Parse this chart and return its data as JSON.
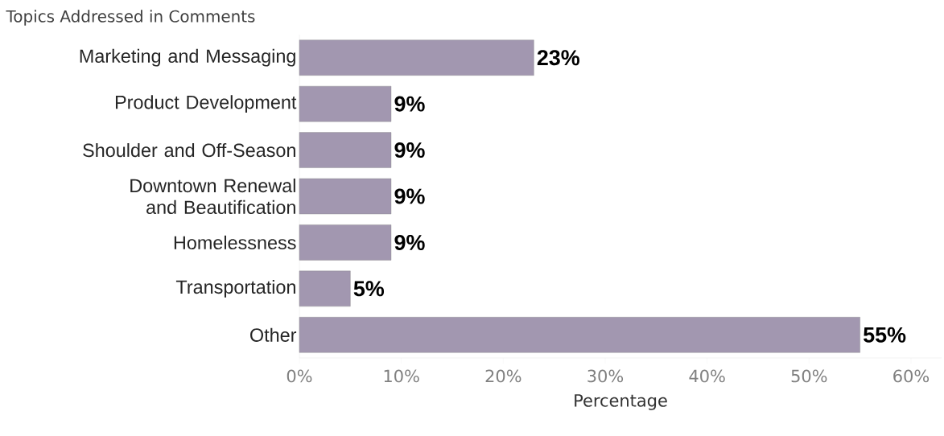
{
  "chart_data": {
    "type": "bar",
    "orientation": "horizontal",
    "title": "Topics Addressed in Comments",
    "xlabel": "Percentage",
    "categories": [
      "Marketing and Messaging",
      "Product Development",
      "Shoulder and Off-Season",
      "Downtown Renewal and Beautification",
      "Homelessness",
      "Transportation",
      "Other"
    ],
    "values": [
      23,
      9,
      9,
      9,
      9,
      5,
      55
    ],
    "value_labels": [
      "23%",
      "9%",
      "9%",
      "9%",
      "9%",
      "5%",
      "55%"
    ],
    "color": "#a297b0",
    "xlim": [
      0,
      63
    ],
    "xticks": [
      {
        "value": 0,
        "label": "0%"
      },
      {
        "value": 10,
        "label": "10%"
      },
      {
        "value": 20,
        "label": "20%"
      },
      {
        "value": 30,
        "label": "30%"
      },
      {
        "value": 40,
        "label": "40%"
      },
      {
        "value": 50,
        "label": "50%"
      },
      {
        "value": 60,
        "label": "60%"
      }
    ],
    "grid": false
  }
}
